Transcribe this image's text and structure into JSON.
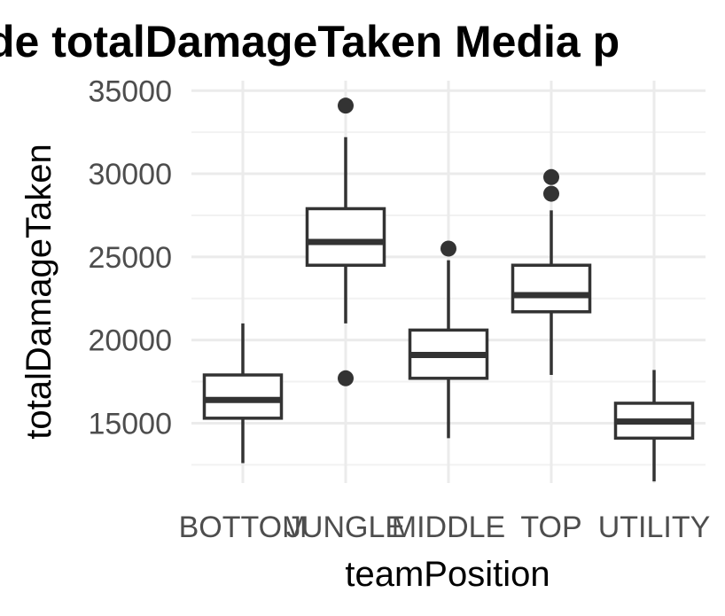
{
  "chart_data": {
    "type": "boxplot",
    "title": "de totalDamageTaken Media p",
    "xlabel": "teamPosition",
    "ylabel": "totalDamageTaken",
    "ylim": [
      11400,
      35600
    ],
    "yticks": [
      15000,
      20000,
      25000,
      30000,
      35000
    ],
    "grid": true,
    "categories": [
      "BOTTOM",
      "JUNGLE",
      "MIDDLE",
      "TOP",
      "UTILITY"
    ],
    "boxes": [
      {
        "category": "BOTTOM",
        "lower_whisker": 12600,
        "q1": 15300,
        "median": 16400,
        "q3": 17900,
        "upper_whisker": 21000,
        "outliers": []
      },
      {
        "category": "JUNGLE",
        "lower_whisker": 21000,
        "q1": 24500,
        "median": 25900,
        "q3": 27900,
        "upper_whisker": 32200,
        "outliers": [
          34100,
          17700
        ]
      },
      {
        "category": "MIDDLE",
        "lower_whisker": 14100,
        "q1": 17700,
        "median": 19100,
        "q3": 20600,
        "upper_whisker": 24800,
        "outliers": [
          25500
        ]
      },
      {
        "category": "TOP",
        "lower_whisker": 17900,
        "q1": 21700,
        "median": 22700,
        "q3": 24500,
        "upper_whisker": 27800,
        "outliers": [
          29800,
          28800
        ]
      },
      {
        "category": "UTILITY",
        "lower_whisker": 11500,
        "q1": 14100,
        "median": 15100,
        "q3": 16200,
        "upper_whisker": 18200,
        "outliers": []
      }
    ]
  }
}
